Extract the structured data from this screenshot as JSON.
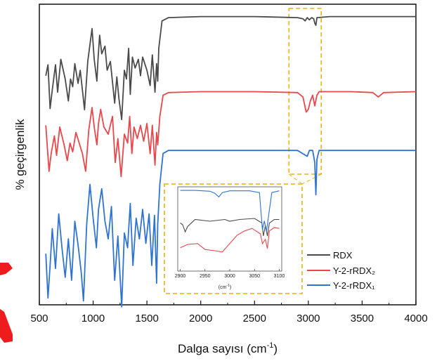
{
  "chart_data": {
    "type": "line",
    "xlabel": "Dalga sayısı (cm",
    "xlabel_sup": "-1",
    "xlabel_end": ")",
    "ylabel": "% geçirgenlik",
    "xlim": [
      500,
      4000
    ],
    "x_ticks": [
      500,
      1000,
      1500,
      2000,
      2500,
      3000,
      3500,
      4000
    ],
    "y_ticks_shown": false,
    "legend_placement": "bottom-right",
    "grid": false,
    "highlight_region_x": [
      2820,
      3120
    ],
    "series": [
      {
        "name": "RDX",
        "color": "#4a4a4a",
        "offset": 0.0,
        "points": [
          [
            560,
            0.55
          ],
          [
            580,
            0.45
          ],
          [
            600,
            0.85
          ],
          [
            620,
            0.68
          ],
          [
            650,
            0.45
          ],
          [
            670,
            0.7
          ],
          [
            700,
            0.4
          ],
          [
            740,
            0.58
          ],
          [
            770,
            0.78
          ],
          [
            790,
            0.58
          ],
          [
            810,
            0.65
          ],
          [
            830,
            0.44
          ],
          [
            860,
            0.62
          ],
          [
            880,
            0.5
          ],
          [
            900,
            0.68
          ],
          [
            920,
            0.86
          ],
          [
            950,
            0.42
          ],
          [
            990,
            0.12
          ],
          [
            1010,
            0.4
          ],
          [
            1035,
            0.6
          ],
          [
            1045,
            0.4
          ],
          [
            1060,
            0.18
          ],
          [
            1080,
            0.35
          ],
          [
            1110,
            0.28
          ],
          [
            1130,
            0.5
          ],
          [
            1160,
            0.42
          ],
          [
            1200,
            0.8
          ],
          [
            1220,
            0.56
          ],
          [
            1240,
            0.76
          ],
          [
            1265,
            0.95
          ],
          [
            1290,
            0.5
          ],
          [
            1310,
            0.58
          ],
          [
            1330,
            0.3
          ],
          [
            1345,
            0.72
          ],
          [
            1365,
            0.38
          ],
          [
            1390,
            0.48
          ],
          [
            1420,
            0.4
          ],
          [
            1440,
            0.55
          ],
          [
            1460,
            0.38
          ],
          [
            1500,
            0.5
          ],
          [
            1530,
            0.64
          ],
          [
            1550,
            0.36
          ],
          [
            1575,
            0.7
          ],
          [
            1590,
            0.44
          ],
          [
            1600,
            0.6
          ],
          [
            1610,
            0.3
          ],
          [
            1640,
            0.05
          ],
          [
            1700,
            0.02
          ],
          [
            2000,
            0.01
          ],
          [
            2500,
            0.01
          ],
          [
            2900,
            0.02
          ],
          [
            2950,
            0.03
          ],
          [
            2970,
            0.05
          ],
          [
            2990,
            0.02
          ],
          [
            3010,
            0.04
          ],
          [
            3030,
            0.02
          ],
          [
            3050,
            0.03
          ],
          [
            3060,
            0.07
          ],
          [
            3070,
            0.09
          ],
          [
            3080,
            0.02
          ],
          [
            3200,
            0.01
          ],
          [
            4000,
            0.01
          ]
        ]
      },
      {
        "name": "Y-2-rRDX₂",
        "color": "#e8474c",
        "offset": 0.0,
        "points": [
          [
            560,
            0.4
          ],
          [
            590,
            0.92
          ],
          [
            610,
            0.72
          ],
          [
            640,
            0.52
          ],
          [
            660,
            0.74
          ],
          [
            690,
            0.42
          ],
          [
            730,
            0.62
          ],
          [
            760,
            0.8
          ],
          [
            785,
            0.6
          ],
          [
            810,
            0.7
          ],
          [
            840,
            0.48
          ],
          [
            870,
            0.6
          ],
          [
            900,
            0.72
          ],
          [
            930,
            0.92
          ],
          [
            960,
            0.45
          ],
          [
            990,
            0.2
          ],
          [
            1010,
            0.42
          ],
          [
            1035,
            0.62
          ],
          [
            1050,
            0.38
          ],
          [
            1070,
            0.22
          ],
          [
            1100,
            0.42
          ],
          [
            1140,
            0.5
          ],
          [
            1180,
            0.3
          ],
          [
            1205,
            0.82
          ],
          [
            1230,
            0.55
          ],
          [
            1260,
            0.98
          ],
          [
            1290,
            0.5
          ],
          [
            1320,
            0.6
          ],
          [
            1340,
            0.3
          ],
          [
            1360,
            0.72
          ],
          [
            1380,
            0.42
          ],
          [
            1410,
            0.55
          ],
          [
            1440,
            0.4
          ],
          [
            1470,
            0.58
          ],
          [
            1500,
            0.38
          ],
          [
            1530,
            0.72
          ],
          [
            1550,
            0.4
          ],
          [
            1575,
            0.85
          ],
          [
            1590,
            0.48
          ],
          [
            1600,
            0.62
          ],
          [
            1620,
            0.3
          ],
          [
            1650,
            0.06
          ],
          [
            1700,
            0.03
          ],
          [
            2000,
            0.02
          ],
          [
            2500,
            0.02
          ],
          [
            2900,
            0.03
          ],
          [
            2950,
            0.08
          ],
          [
            2980,
            0.25
          ],
          [
            3000,
            0.22
          ],
          [
            3020,
            0.12
          ],
          [
            3040,
            0.06
          ],
          [
            3060,
            0.18
          ],
          [
            3080,
            0.06
          ],
          [
            3100,
            0.02
          ],
          [
            3400,
            0.02
          ],
          [
            3600,
            0.03
          ],
          [
            3650,
            0.08
          ],
          [
            3700,
            0.03
          ],
          [
            4000,
            0.02
          ]
        ]
      },
      {
        "name": "Y-2-rRDX₁",
        "color": "#2f74d0",
        "offset": 0.0,
        "points": [
          [
            560,
            0.72
          ],
          [
            580,
            1.02
          ],
          [
            600,
            0.8
          ],
          [
            620,
            0.55
          ],
          [
            650,
            0.82
          ],
          [
            680,
            0.45
          ],
          [
            710,
            0.68
          ],
          [
            740,
            0.88
          ],
          [
            770,
            0.62
          ],
          [
            800,
            0.9
          ],
          [
            830,
            0.5
          ],
          [
            860,
            0.66
          ],
          [
            890,
            0.85
          ],
          [
            910,
            1.04
          ],
          [
            940,
            0.52
          ],
          [
            970,
            0.25
          ],
          [
            1000,
            0.48
          ],
          [
            1030,
            0.68
          ],
          [
            1050,
            0.42
          ],
          [
            1080,
            0.28
          ],
          [
            1110,
            0.5
          ],
          [
            1140,
            0.62
          ],
          [
            1170,
            0.4
          ],
          [
            1200,
            0.9
          ],
          [
            1230,
            0.6
          ],
          [
            1265,
            1.08
          ],
          [
            1290,
            0.58
          ],
          [
            1320,
            0.68
          ],
          [
            1345,
            0.38
          ],
          [
            1370,
            0.8
          ],
          [
            1400,
            0.48
          ],
          [
            1430,
            0.62
          ],
          [
            1460,
            0.42
          ],
          [
            1490,
            0.65
          ],
          [
            1520,
            0.45
          ],
          [
            1545,
            0.8
          ],
          [
            1570,
            0.46
          ],
          [
            1590,
            0.92
          ],
          [
            1600,
            0.52
          ],
          [
            1620,
            0.25
          ],
          [
            1650,
            0.04
          ],
          [
            1700,
            0.02
          ],
          [
            2000,
            0.02
          ],
          [
            2500,
            0.02
          ],
          [
            2900,
            0.02
          ],
          [
            2990,
            0.06
          ],
          [
            3010,
            0.02
          ],
          [
            3040,
            0.02
          ],
          [
            3060,
            0.1
          ],
          [
            3070,
            0.32
          ],
          [
            3080,
            0.08
          ],
          [
            3100,
            0.02
          ],
          [
            4000,
            0.02
          ]
        ]
      }
    ],
    "inset": {
      "x_ticks": [
        2900,
        2950,
        3000,
        3050,
        3100
      ],
      "xlabel": "(cm",
      "xlabel_sup": "-1",
      "xlabel_end": ")",
      "xlim": [
        2895,
        3105
      ],
      "series": [
        {
          "name": "RDX",
          "color": "#4a4a4a",
          "points": [
            [
              2900,
              0.55
            ],
            [
              2905,
              0.6
            ],
            [
              2910,
              0.8
            ],
            [
              2915,
              0.65
            ],
            [
              2930,
              0.45
            ],
            [
              2960,
              0.5
            ],
            [
              2990,
              0.45
            ],
            [
              3000,
              0.5
            ],
            [
              3020,
              0.45
            ],
            [
              3050,
              0.42
            ],
            [
              3065,
              0.55
            ],
            [
              3068,
              0.92
            ],
            [
              3072,
              0.62
            ],
            [
              3076,
              0.92
            ],
            [
              3080,
              0.55
            ],
            [
              3090,
              0.45
            ],
            [
              3100,
              0.45
            ]
          ]
        },
        {
          "name": "Y-2-rRDX₂",
          "color": "#e8474c",
          "points": [
            [
              2900,
              0.88
            ],
            [
              2915,
              0.8
            ],
            [
              2935,
              0.78
            ],
            [
              2950,
              0.92
            ],
            [
              2970,
              0.95
            ],
            [
              2985,
              0.98
            ],
            [
              3000,
              0.78
            ],
            [
              3015,
              0.58
            ],
            [
              3030,
              0.48
            ],
            [
              3045,
              0.42
            ],
            [
              3062,
              0.55
            ],
            [
              3066,
              0.78
            ],
            [
              3072,
              0.68
            ],
            [
              3076,
              0.9
            ],
            [
              3080,
              0.48
            ],
            [
              3090,
              0.4
            ],
            [
              3100,
              0.42
            ]
          ]
        },
        {
          "name": "Y-2-rRDX₁",
          "color": "#2f74d0",
          "points": [
            [
              2900,
              0.05
            ],
            [
              2930,
              0.05
            ],
            [
              2960,
              0.07
            ],
            [
              2970,
              0.12
            ],
            [
              2978,
              0.2
            ],
            [
              2985,
              0.1
            ],
            [
              3000,
              0.06
            ],
            [
              3040,
              0.06
            ],
            [
              3060,
              0.1
            ],
            [
              3066,
              0.95
            ],
            [
              3070,
              0.75
            ],
            [
              3074,
              1.0
            ],
            [
              3080,
              0.5
            ],
            [
              3085,
              0.1
            ],
            [
              3100,
              0.06
            ]
          ]
        }
      ]
    },
    "colors": {
      "highlight": "#e6b214",
      "axis": "#111111"
    },
    "annotations": [
      {
        "type": "red-arc-mark",
        "color": "#ee1c1c"
      }
    ]
  }
}
